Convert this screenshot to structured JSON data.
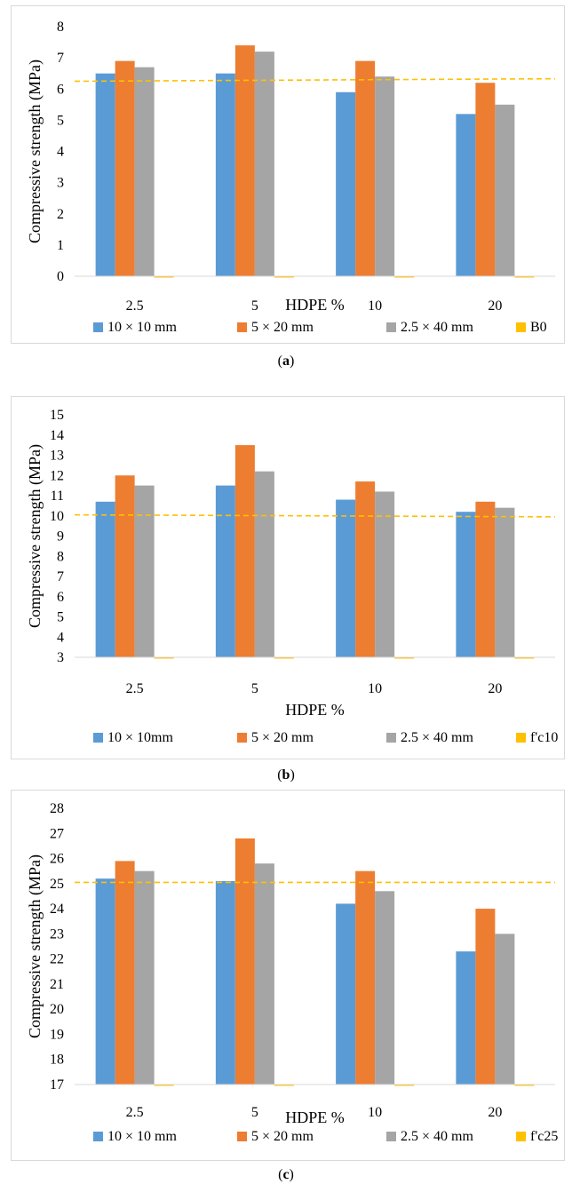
{
  "chart_data": [
    {
      "type": "bar",
      "categories": [
        "2.5",
        "5",
        "10",
        "20"
      ],
      "series": [
        {
          "name": "10 × 10 mm",
          "values": [
            6.5,
            6.5,
            5.9,
            5.2
          ],
          "color": "#5b9bd5"
        },
        {
          "name": "5 × 20 mm",
          "values": [
            6.9,
            7.4,
            6.9,
            6.2
          ],
          "color": "#ed7d31"
        },
        {
          "name": "2.5 × 40 mm",
          "values": [
            6.7,
            7.2,
            6.4,
            5.5
          ],
          "color": "#a5a5a5"
        },
        {
          "name": "B0",
          "values": [
            0,
            0,
            0,
            0
          ],
          "color": "#ffc000"
        }
      ],
      "reference_line": {
        "name": "B0",
        "start": 6.25,
        "end": 6.33,
        "style": "dashed",
        "color": "#ffc000"
      },
      "xlabel": "HDPE  %",
      "ylabel": "Compressive strength (MPa)",
      "ylim": [
        0,
        8
      ],
      "yticks": [
        "0",
        "1",
        "2",
        "3",
        "4",
        "5",
        "6",
        "7",
        "8"
      ],
      "grid": false,
      "legend_position": "bottom",
      "caption": "(a)",
      "caption_letter": "a"
    },
    {
      "type": "bar",
      "categories": [
        "2.5",
        "5",
        "10",
        "20"
      ],
      "series": [
        {
          "name": "10  × 10mm",
          "values": [
            10.7,
            11.5,
            10.8,
            10.2
          ],
          "color": "#5b9bd5"
        },
        {
          "name": "5 × 20 mm",
          "values": [
            12.0,
            13.5,
            11.7,
            10.7
          ],
          "color": "#ed7d31"
        },
        {
          "name": "2.5 × 40 mm",
          "values": [
            11.5,
            12.2,
            11.2,
            10.4
          ],
          "color": "#a5a5a5"
        },
        {
          "name": "f'c10",
          "values": [
            3.0,
            3.0,
            3.0,
            3.0
          ],
          "color": "#ffc000"
        }
      ],
      "reference_line": {
        "name": "f'c10",
        "start": 10.05,
        "end": 9.95,
        "style": "dashed",
        "color": "#ffc000"
      },
      "xlabel": "HDPE  %",
      "ylabel": "Compressive strength (MPa)",
      "ylim": [
        3,
        15
      ],
      "yticks": [
        "3",
        "4",
        "5",
        "6",
        "7",
        "8",
        "9",
        "10",
        "11",
        "12",
        "13",
        "14",
        "15"
      ],
      "grid": false,
      "legend_position": "bottom",
      "caption": "(b)",
      "caption_letter": "b"
    },
    {
      "type": "bar",
      "categories": [
        "2.5",
        "5",
        "10",
        "20"
      ],
      "series": [
        {
          "name": "10 × 10 mm",
          "values": [
            25.2,
            25.1,
            24.2,
            22.3
          ],
          "color": "#5b9bd5"
        },
        {
          "name": "5 × 20 mm",
          "values": [
            25.9,
            26.8,
            25.5,
            24.0
          ],
          "color": "#ed7d31"
        },
        {
          "name": "2.5 × 40 mm",
          "values": [
            25.5,
            25.8,
            24.7,
            23.0
          ],
          "color": "#a5a5a5"
        },
        {
          "name": "f'c25",
          "values": [
            17.0,
            17.0,
            17.0,
            17.0
          ],
          "color": "#ffc000"
        }
      ],
      "reference_line": {
        "name": "f'c25",
        "start": 25.05,
        "end": 25.05,
        "style": "dashed",
        "color": "#ffc000"
      },
      "xlabel": "HDPE %",
      "ylabel": "Compressive strength (MPa)",
      "ylim": [
        17,
        28
      ],
      "yticks": [
        "17",
        "18",
        "19",
        "20",
        "21",
        "22",
        "23",
        "24",
        "25",
        "26",
        "27",
        "28"
      ],
      "grid": false,
      "legend_position": "bottom",
      "caption": "(c)",
      "caption_letter": "c"
    }
  ]
}
